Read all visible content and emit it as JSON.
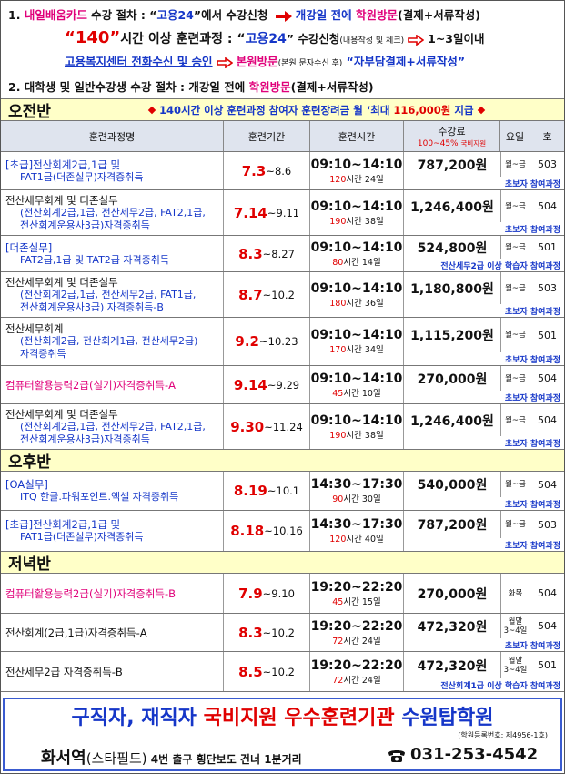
{
  "notice": {
    "line1": [
      "1. ",
      "내일배움카드",
      " 수강 절차 : “",
      "고용24",
      "”에서 수강신청 ",
      "개강일 전에 ",
      "학원방문",
      "(결제+서류작성)"
    ],
    "line2": [
      "“140”",
      "시간 이상 훈련과정 : “",
      "고용24",
      "” 수강신청",
      "(내용작성 및 체크)",
      "1~3일이내"
    ],
    "line3": [
      "고용복지센터 전화수신 및 승인",
      "본원방문",
      "(본원 문자수신 후)",
      " “자부담결제+서류작성”"
    ],
    "line4": [
      "2. 대학생 및 일반수강생 수강 절차 : 개강일 전에 ",
      "학원방문",
      "(결제+서류작성)"
    ]
  },
  "table": {
    "header": {
      "name": "훈련과정명",
      "period": "훈련기간",
      "time": "훈련시간",
      "fee": "수강료",
      "fee_sub": [
        "100~45%",
        "국비지원"
      ],
      "weekday": "요일",
      "room": "호"
    },
    "sections": [
      {
        "title": "오전반",
        "banner": [
          "140시간 이상 훈련과정 참여자 훈련장려금 월 ‘최대 ",
          "116,000원",
          " 지급"
        ],
        "rows": [
          {
            "name": [
              "[초급]전산회계2급,1급 및",
              "FAT1급(더존실무)자격증취득"
            ],
            "start": "7.3",
            "end": "~8.6",
            "time": "09:10~14:10",
            "hours": [
              "120",
              "시간",
              "24일"
            ],
            "fee": "787,200원",
            "weekday": [
              "월~금"
            ],
            "room": "503",
            "note": "초보자 참여과정"
          },
          {
            "name": [
              "전산세무회계 및 더존실무",
              "(전산회계2급,1급, 전산세무2급, FAT2,1급,",
              "전산회계운용사3급)자격증취득"
            ],
            "start": "7.14",
            "end": "~9.11",
            "time": "09:10~14:10",
            "hours": [
              "190",
              "시간",
              "38일"
            ],
            "fee": "1,246,400원",
            "weekday": [
              "월~금"
            ],
            "room": "504",
            "note": "초보자 참여과정"
          },
          {
            "name": [
              "[더존실무]",
              "FAT2급,1급 및 TAT2급 자격증취득"
            ],
            "start": "8.3",
            "end": "~8.27",
            "time": "09:10~14:10",
            "hours": [
              "80",
              "시간",
              "14일"
            ],
            "fee": "524,800원",
            "weekday": [
              "월~금"
            ],
            "room": "501",
            "note": "전산세무2급 이상 학습자 참여과정"
          },
          {
            "name": [
              "전산세무회계 및 더존실무",
              "(전산회계2급,1급,   전산세무2급, FAT1급,",
              "전산회계운용사3급) 자격증취득-B"
            ],
            "start": "8.7",
            "end": "~10.2",
            "time": "09:10~14:10",
            "hours": [
              "180",
              "시간",
              "36일"
            ],
            "fee": "1,180,800원",
            "weekday": [
              "월~금"
            ],
            "room": "503",
            "note": "초보자 참여과정"
          },
          {
            "name": [
              "전산세무회계",
              "(전산회계2급, 전산회계1급, 전산세무2급)",
              "자격증취득"
            ],
            "start": "9.2",
            "end": "~10.23",
            "time": "09:10~14:10",
            "hours": [
              "170",
              "시간",
              "34일"
            ],
            "fee": "1,115,200원",
            "weekday": [
              "월~금"
            ],
            "room": "501",
            "note": "초보자 참여과정"
          },
          {
            "name": [
              "컴퓨터활용능력2급(실기)자격증취득-A"
            ],
            "start": "9.14",
            "end": "~9.29",
            "time": "09:10~14:10",
            "hours": [
              "45",
              "시간",
              "10일"
            ],
            "fee": "270,000원",
            "weekday": [
              "월~금"
            ],
            "room": "504",
            "note": "초보자 참여과정"
          },
          {
            "name": [
              "전산세무회계 및 더존실무",
              "(전산회계2급,1급, 전산세무2급, FAT2,1급,",
              "전산회계운용사3급)자격증취득"
            ],
            "start": "9.30",
            "end": "~11.24",
            "time": "09:10~14:10",
            "hours": [
              "190",
              "시간",
              "38일"
            ],
            "fee": "1,246,400원",
            "weekday": [
              "월~금"
            ],
            "room": "504",
            "note": "초보자 참여과정"
          }
        ]
      },
      {
        "title": "오후반",
        "rows": [
          {
            "name": [
              "[OA실무]",
              "ITQ 한글.파워포인트.엑셀 자격증취득"
            ],
            "start": "8.19",
            "end": "~10.1",
            "time": "14:30~17:30",
            "hours": [
              "90",
              "시간",
              "30일"
            ],
            "fee": "540,000원",
            "weekday": [
              "월~금"
            ],
            "room": "504",
            "note": "초보자 참여과정"
          },
          {
            "name": [
              "[초급]전산회계2급,1급 및",
              "FAT1급(더존실무)자격증취득"
            ],
            "start": "8.18",
            "end": "~10.16",
            "time": "14:30~17:30",
            "hours": [
              "120",
              "시간",
              "40일"
            ],
            "fee": "787,200원",
            "weekday": [
              "월~금"
            ],
            "room": "503",
            "note": "초보자 참여과정"
          }
        ]
      },
      {
        "title": "저녁반",
        "rows": [
          {
            "name": [
              "컴퓨터활용능력2급(실기)자격증취득-B"
            ],
            "start": "7.9",
            "end": "~9.10",
            "time": "19:20~22:20",
            "hours": [
              "45",
              "시간",
              "15일"
            ],
            "fee": "270,000원",
            "weekday": [
              "화목"
            ],
            "room": "504"
          },
          {
            "name": [
              "전산회계(2급,1급)자격증취득-A"
            ],
            "start": "8.3",
            "end": "~10.2",
            "time": "19:20~22:20",
            "hours": [
              "72",
              "시간",
              "24일"
            ],
            "fee": "472,320원",
            "weekday": [
              "월말",
              "3~4일"
            ],
            "room": "504",
            "note": "초보자 참여과정"
          },
          {
            "name": [
              "전산세무2급 자격증취득-B"
            ],
            "start": "8.5",
            "end": "~10.2",
            "time": "19:20~22:20",
            "hours": [
              "72",
              "시간",
              "24일"
            ],
            "fee": "472,320원",
            "weekday": [
              "월말",
              "3~4일"
            ],
            "room": "501",
            "note": "전산회계1급 이상 학습자 참여과정"
          }
        ]
      }
    ]
  },
  "footer": {
    "slogan": [
      "구직자, 재직자 ",
      "국비지원 우수훈련기관",
      " 수원탑학원"
    ],
    "registration": "(학원등록번호: 제4956-1호)",
    "location": [
      "화서역",
      "(스타필드)",
      " 4번 출구 횡단보도 건너 1분거리"
    ],
    "phone": "031-253-4542"
  }
}
